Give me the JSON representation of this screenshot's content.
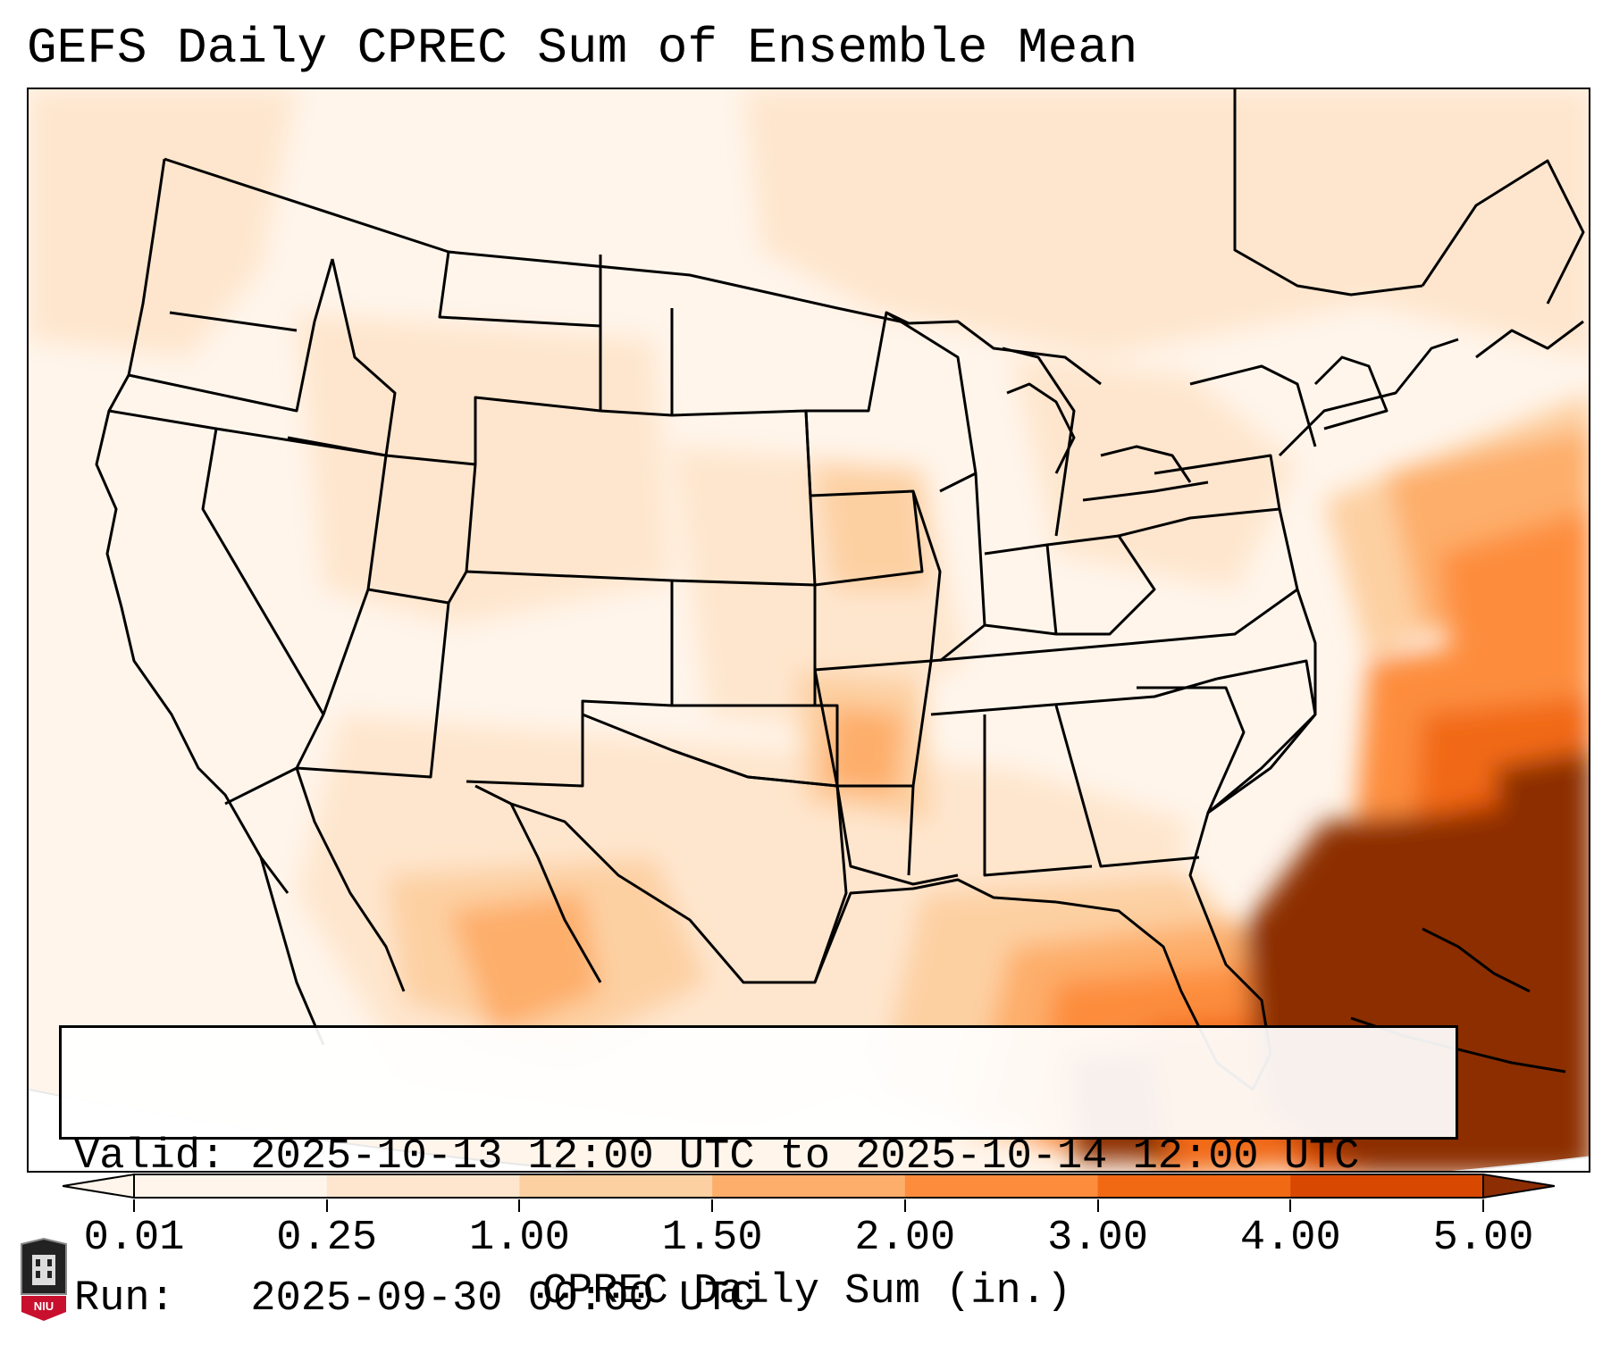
{
  "title": "GEFS Daily CPREC Sum of Ensemble Mean",
  "info": {
    "valid_line": "Valid: 2025-10-13 12:00 UTC to 2025-10-14 12:00 UTC",
    "run_line": "Run:   2025-09-30 00:00 UTC"
  },
  "colorbar": {
    "label": "CPREC Daily Sum (in.)",
    "ticks": [
      "0.01",
      "0.25",
      "1.00",
      "1.50",
      "2.00",
      "3.00",
      "4.00",
      "5.00"
    ],
    "colors": [
      "#fff5eb",
      "#fee6ce",
      "#fdd0a2",
      "#fdae6b",
      "#fd8d3c",
      "#f16913",
      "#d94801",
      "#8c2d04"
    ],
    "extend": "both"
  },
  "map": {
    "region": "Contiguous United States, northern Mexico, Caribbean",
    "features": [
      "state boundaries",
      "national boundaries",
      "coastlines"
    ]
  },
  "logo": {
    "text": "NIU"
  }
}
